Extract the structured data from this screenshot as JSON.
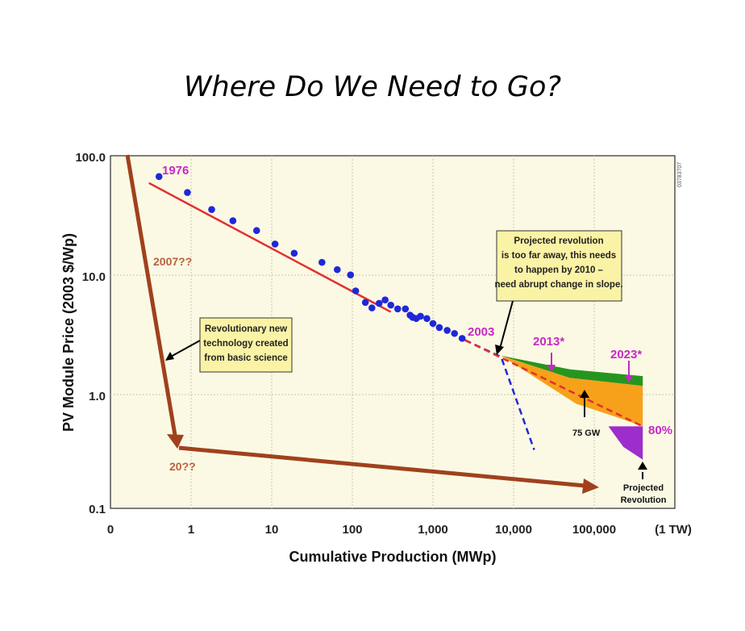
{
  "slide": {
    "title": "Where Do We Need to Go?"
  },
  "chart_data": {
    "type": "scatter",
    "xlabel": "Cumulative Production (MWp)",
    "ylabel": "PV Module Price (2003 $/Wp)",
    "x_scale": "log",
    "y_scale": "log",
    "xlim": [
      0.1,
      400000
    ],
    "ylim": [
      0.1,
      100
    ],
    "x_ticks": [
      "0",
      "1",
      "10",
      "100",
      "1,000",
      "10,000",
      "100,000",
      "(1 TW)"
    ],
    "y_ticks": [
      "0.1",
      "1.0",
      "10.0",
      "100.0"
    ],
    "grid": true,
    "figure_code": "03783707",
    "series": [
      {
        "name": "",
        "kind": "points",
        "color": "#1f28d8",
        "points": [
          [
            0.4,
            68
          ],
          [
            0.9,
            50
          ],
          [
            1.8,
            36
          ],
          [
            3.3,
            29
          ],
          [
            6.5,
            24
          ],
          [
            11,
            18.5
          ],
          [
            19,
            15.5
          ],
          [
            42,
            13
          ],
          [
            65,
            11.3
          ],
          [
            95,
            10.2
          ],
          [
            110,
            7.5
          ],
          [
            145,
            6.0
          ],
          [
            175,
            5.4
          ],
          [
            215,
            5.9
          ],
          [
            255,
            6.3
          ],
          [
            300,
            5.7
          ],
          [
            365,
            5.3
          ],
          [
            455,
            5.3
          ],
          [
            520,
            4.7
          ],
          [
            560,
            4.5
          ],
          [
            620,
            4.4
          ],
          [
            700,
            4.6
          ],
          [
            840,
            4.4
          ],
          [
            1000,
            4.0
          ],
          [
            1200,
            3.7
          ],
          [
            1500,
            3.5
          ],
          [
            1850,
            3.3
          ],
          [
            2300,
            3.0
          ]
        ]
      },
      {
        "name": "",
        "kind": "fit-line",
        "color": "#e23030",
        "points": [
          [
            0.3,
            60
          ],
          [
            300,
            5.0
          ]
        ]
      },
      {
        "name": "",
        "kind": "extrapolation",
        "style": "dashed",
        "color": "#1f28d8",
        "points": [
          [
            2500,
            2.9
          ],
          [
            7000,
            2.1
          ],
          [
            18000,
            0.35
          ]
        ]
      },
      {
        "name": "80%",
        "kind": "projection",
        "style": "dashed",
        "color": "#e23030",
        "points": [
          [
            2500,
            2.9
          ],
          [
            400000,
            0.55
          ]
        ]
      },
      {
        "name": "",
        "kind": "band",
        "color": "#26951f",
        "upper": [
          [
            2500,
            2.9
          ],
          [
            7000,
            2.15
          ],
          [
            50000,
            1.65
          ],
          [
            400000,
            1.45
          ]
        ],
        "lower": [
          [
            2500,
            2.9
          ],
          [
            7000,
            2.15
          ],
          [
            50000,
            1.4
          ],
          [
            400000,
            1.2
          ]
        ]
      },
      {
        "name": "",
        "kind": "band",
        "color": "#f7a11a",
        "upper": [
          [
            7000,
            2.15
          ],
          [
            50000,
            1.4
          ],
          [
            400000,
            1.2
          ]
        ],
        "lower": [
          [
            7000,
            2.15
          ],
          [
            60000,
            0.85
          ],
          [
            200000,
            0.65
          ],
          [
            400000,
            0.55
          ]
        ]
      },
      {
        "name": "",
        "kind": "band",
        "color": "#9d2dcc",
        "upper": [
          [
            150000,
            0.55
          ],
          [
            400000,
            0.55
          ]
        ],
        "lower": [
          [
            150000,
            0.55
          ],
          [
            230000,
            0.37
          ],
          [
            400000,
            0.29
          ]
        ]
      }
    ],
    "annotations": {
      "year_1976": "1976",
      "year_2003": "2003",
      "year_2013": "2013*",
      "year_2023": "2023*",
      "pct_80": "80%",
      "gw_75": "75 GW",
      "q_2007": "2007??",
      "q_20": "20??",
      "projected_revolution": [
        "Projected",
        "Revolution"
      ],
      "box_revolution": [
        "Projected revolution",
        "is too far away, this needs",
        "to happen by 2010 –",
        "need abrupt change in slope."
      ],
      "box_technology": [
        "Revolutionary new",
        "technology created",
        "from basic science"
      ]
    },
    "colors": {
      "plot_bg": "#fbf9e4",
      "data_points": "#1f28d8",
      "fit_line": "#e23030",
      "arrows_brown": "#a0411d",
      "labels_magenta": "#c629c6",
      "band_green": "#26951f",
      "band_orange": "#f7a11a",
      "band_purple": "#9d2dcc"
    }
  }
}
